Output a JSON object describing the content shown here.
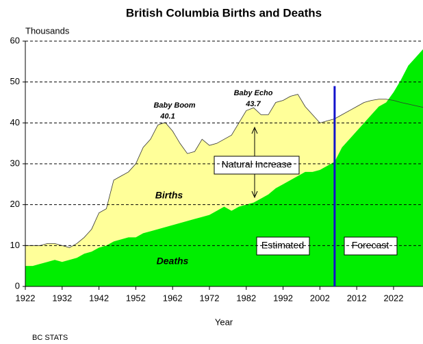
{
  "chart_data": {
    "type": "area",
    "title": "British Columbia Births and Deaths",
    "y_label": "Thousands",
    "x_label": "Year",
    "source": "BC STATS",
    "x": [
      1922,
      1924,
      1926,
      1928,
      1930,
      1932,
      1934,
      1936,
      1938,
      1940,
      1942,
      1944,
      1946,
      1948,
      1950,
      1952,
      1954,
      1956,
      1958,
      1960,
      1962,
      1964,
      1966,
      1968,
      1970,
      1972,
      1974,
      1976,
      1978,
      1980,
      1982,
      1984,
      1986,
      1988,
      1990,
      1992,
      1994,
      1996,
      1998,
      2000,
      2002,
      2004,
      2006,
      2008,
      2010,
      2012,
      2014,
      2016,
      2018,
      2020,
      2022,
      2024,
      2026,
      2028,
      2030
    ],
    "series": [
      {
        "name": "Births",
        "color": "#ffff99",
        "values": [
          10,
          10,
          10,
          10.5,
          10.5,
          10,
          9.5,
          10.5,
          12,
          14,
          18,
          19,
          26,
          27,
          28,
          30,
          34,
          36,
          39.5,
          40.1,
          38,
          35,
          32.5,
          33,
          36,
          34.5,
          35,
          36,
          37,
          40,
          43,
          43.7,
          42,
          42,
          45,
          45.5,
          46.5,
          47,
          44,
          42,
          40,
          40.5,
          41,
          42,
          43,
          44,
          45,
          45.5,
          45.8,
          45.8,
          45.5,
          45,
          44.6,
          44.2,
          43.8
        ]
      },
      {
        "name": "Deaths",
        "color": "#00ee00",
        "values": [
          5,
          5,
          5.5,
          6,
          6.5,
          6,
          6.5,
          7,
          8,
          8.5,
          9.5,
          10,
          11,
          11.5,
          12,
          12,
          13,
          13.5,
          14,
          14.5,
          15,
          15.5,
          16,
          16.5,
          17,
          17.5,
          18.5,
          19.5,
          18.5,
          19.5,
          20,
          20.5,
          21.5,
          22.5,
          24,
          25,
          26,
          27,
          28,
          28,
          28.5,
          29.5,
          30.5,
          34,
          36,
          38,
          40,
          42,
          44,
          45,
          47.5,
          50.5,
          54,
          56,
          58
        ]
      }
    ],
    "annotations": {
      "baby_boom": "Baby Boom",
      "baby_echo": "Baby Echo",
      "natural_increase": "Natural Increase",
      "estimated": "Estimated",
      "forecast": "Forecast"
    },
    "forecast_start": 2006,
    "xlim": [
      1922,
      2030
    ],
    "xticks": [
      1922,
      1932,
      1942,
      1952,
      1962,
      1972,
      1982,
      1992,
      2002,
      2012,
      2022
    ],
    "ylim": [
      0,
      60
    ],
    "yticks": [
      0,
      10,
      20,
      30,
      40,
      50,
      60
    ],
    "grid": true
  }
}
